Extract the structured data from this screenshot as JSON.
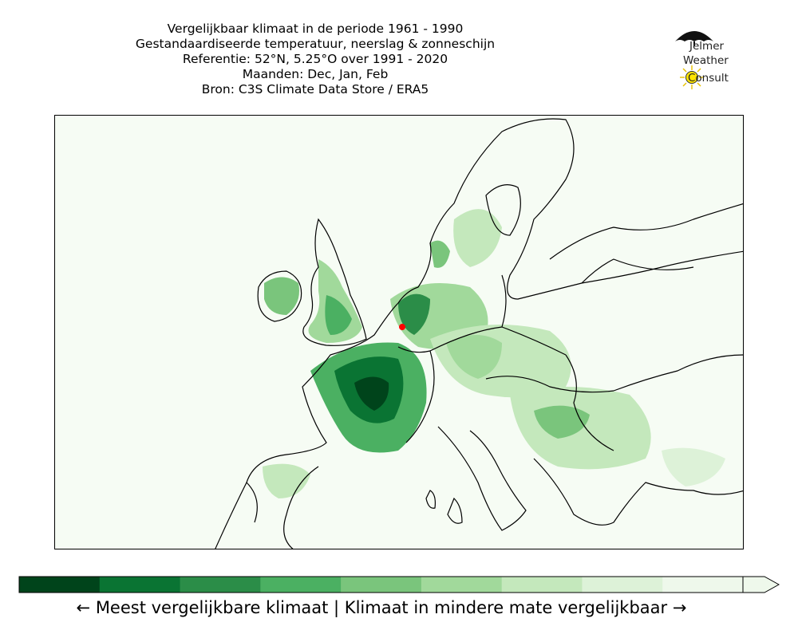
{
  "title": {
    "line1": "Vergelijkbaar klimaat in de periode 1961 - 1990",
    "line2": "Gestandaardiseerde temperatuur, neerslag & zonneschijn",
    "line3": "Referentie: 52°N, 5.25°O over 1991 - 2020",
    "line4": "Maanden: Dec, Jan, Feb",
    "line5": "Bron: C3S Climate Data Store / ERA5"
  },
  "logo": {
    "line1": "Jelmer",
    "line2": "Weather",
    "line3": "Consult",
    "icon": "umbrella-and-sun-icon"
  },
  "map": {
    "region": "Europe",
    "reference_marker_color": "#ff0000",
    "reference_lat": 52,
    "reference_lon": 5.25
  },
  "colorbar": {
    "colors": [
      "#00441b",
      "#0a7433",
      "#2b8d48",
      "#4bb062",
      "#7ac57c",
      "#a1d99b",
      "#c4e8bc",
      "#ddf2d8",
      "#eef8eb"
    ],
    "extend": "max"
  },
  "caption": "← Meest vergelijkbare klimaat  |  Klimaat in mindere mate vergelijkbaar →"
}
